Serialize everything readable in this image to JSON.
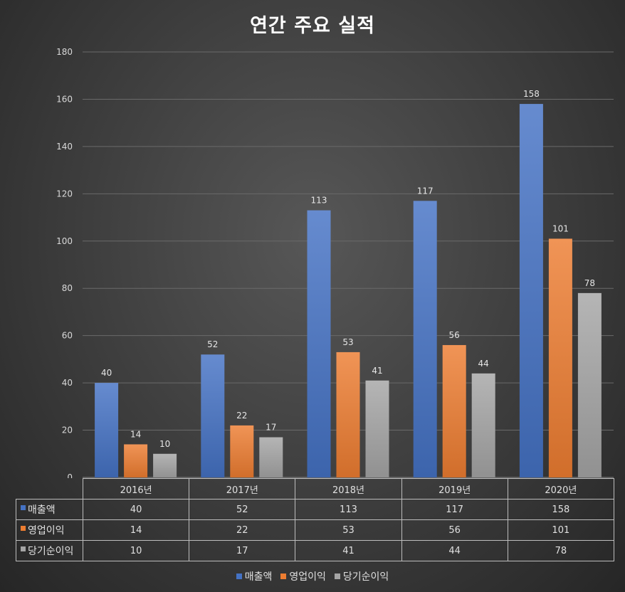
{
  "chart_data": {
    "type": "bar",
    "title": "연간 주요 실적",
    "categories": [
      "2016년",
      "2017년",
      "2018년",
      "2019년",
      "2020년"
    ],
    "series": [
      {
        "name": "매출액",
        "values": [
          40,
          52,
          113,
          117,
          158
        ],
        "color": "#4472c4"
      },
      {
        "name": "영업이익",
        "values": [
          14,
          22,
          53,
          56,
          101
        ],
        "color": "#ed7d31"
      },
      {
        "name": "당기순이익",
        "values": [
          10,
          17,
          41,
          44,
          78
        ],
        "color": "#a5a5a5"
      }
    ],
    "y_ticks": [
      "0",
      "20",
      "40",
      "60",
      "80",
      "100",
      "120",
      "140",
      "160",
      "180"
    ],
    "ylim": [
      0,
      180
    ],
    "grid": true,
    "data_labels": true,
    "data_table": true,
    "legend_position": "bottom"
  }
}
